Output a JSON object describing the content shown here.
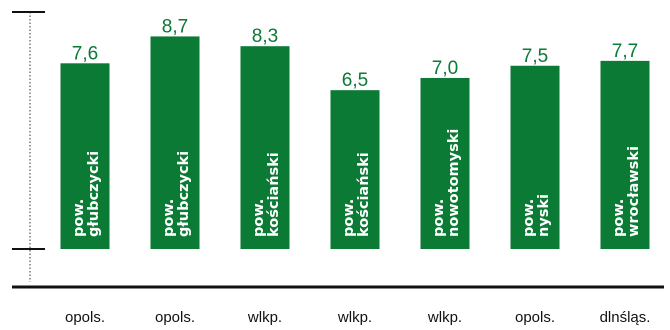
{
  "chart_data": {
    "type": "bar",
    "bar_color": "#0a7a35",
    "value_color": "#0a7a35",
    "ylim": [
      0,
      9.7
    ],
    "grid": false,
    "bars": [
      {
        "line1": "pow.",
        "line2": "głubczycki",
        "region": "opols.",
        "value": 7.6,
        "value_label": "7,6"
      },
      {
        "line1": "pow.",
        "line2": "głubczycki",
        "region": "opols.",
        "value": 8.7,
        "value_label": "8,7"
      },
      {
        "line1": "pow.",
        "line2": "kościański",
        "region": "wlkp.",
        "value": 8.3,
        "value_label": "8,3"
      },
      {
        "line1": "pow.",
        "line2": "kościański",
        "region": "wlkp.",
        "value": 6.5,
        "value_label": "6,5"
      },
      {
        "line1": "pow.",
        "line2": "nowotomyski",
        "region": "wlkp.",
        "value": 7.0,
        "value_label": "7,0"
      },
      {
        "line1": "pow.",
        "line2": "nyski",
        "region": "opols.",
        "value": 7.5,
        "value_label": "7,5"
      },
      {
        "line1": "pow.",
        "line2": "wrocławski",
        "region": "dlnśląs.",
        "value": 7.7,
        "value_label": "7,7"
      }
    ]
  }
}
